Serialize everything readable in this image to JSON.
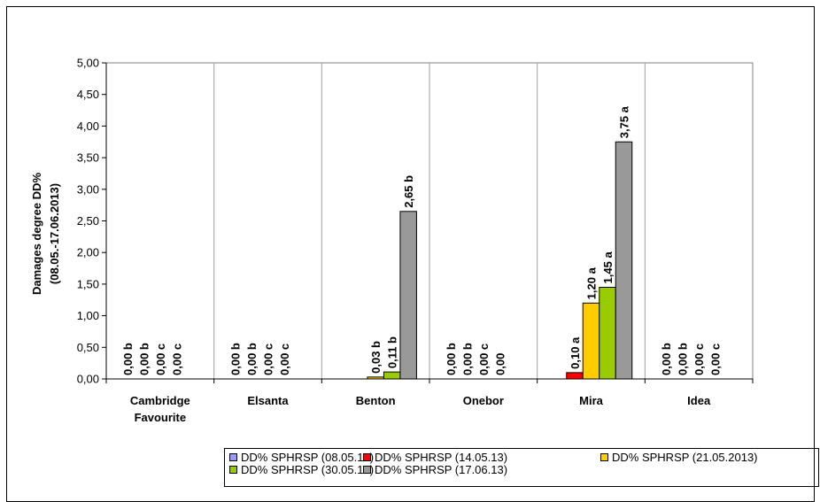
{
  "chart_data": {
    "type": "bar",
    "title": "",
    "xlabel": "",
    "ylabel": "Damages degree DD%",
    "ylabel2": "(08.05.-17.06.2013)",
    "ylim": [
      0,
      5
    ],
    "yticks": [
      "0,00",
      "0,50",
      "1,00",
      "1,50",
      "2,00",
      "2,50",
      "3,00",
      "3,50",
      "4,00",
      "4,50",
      "5,00"
    ],
    "grid": true,
    "legend_position": "bottom",
    "categories": [
      [
        "Cambridge",
        "Favourite"
      ],
      [
        "Elsanta"
      ],
      [
        "Benton"
      ],
      [
        "Onebor"
      ],
      [
        "Mira"
      ],
      [
        "Idea"
      ]
    ],
    "series": [
      {
        "name": "DD% SPHRSP (08.05.13)",
        "color": "#9999ff",
        "values": [
          0,
          0,
          0,
          0,
          0,
          0
        ],
        "labels": [
          "0,00 b",
          "0,00 b",
          "",
          "0,00 b",
          "",
          "0,00 b"
        ]
      },
      {
        "name": "DD% SPHRSP (14.05.13)",
        "color": "#ff0000",
        "values": [
          0,
          0,
          0,
          0,
          0.1,
          0
        ],
        "labels": [
          "0,00 b",
          "0,00 b",
          "",
          "0,00 b",
          "0,10 a",
          "0,00 b"
        ]
      },
      {
        "name": "DD% SPHRSP (21.05.2013)",
        "color": "#ffcc00",
        "values": [
          0,
          0,
          0.03,
          0,
          1.2,
          0
        ],
        "labels": [
          "0,00 c",
          "0,00 c",
          "0,03 b",
          "0,00 c",
          "1,20 a",
          "0,00 c"
        ]
      },
      {
        "name": "DD% SPHRSP (30.05.13)",
        "color": "#99cc00",
        "values": [
          0,
          0,
          0.11,
          0,
          1.45,
          0
        ],
        "labels": [
          "0,00 c",
          "0,00 c",
          "0,11 b",
          "0,00",
          "1,45 a",
          "0,00 c"
        ]
      },
      {
        "name": "DD% SPHRSP (17.06.13)",
        "color": "#999999",
        "values": [
          0,
          0,
          2.65,
          0,
          3.75,
          0
        ],
        "labels": [
          "",
          "",
          "2,65 b",
          "",
          "3,75 a",
          ""
        ]
      }
    ]
  }
}
